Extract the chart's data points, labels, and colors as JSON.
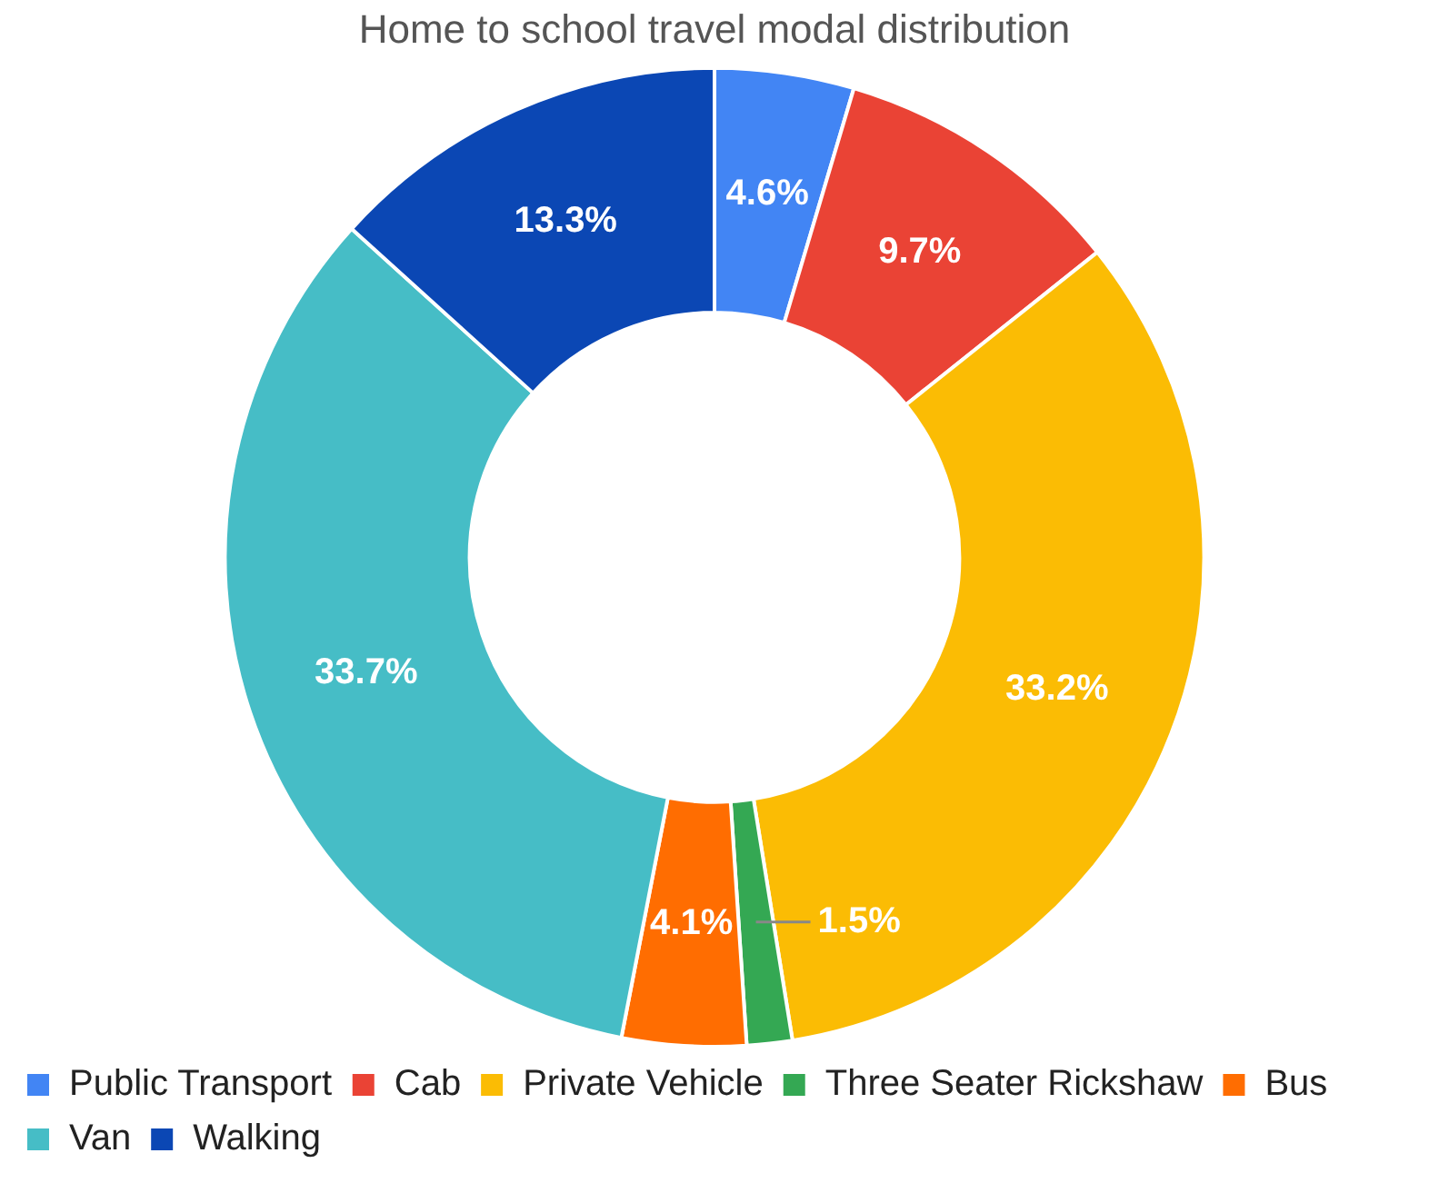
{
  "chart_data": {
    "type": "donut",
    "title": "Home to school travel modal distribution",
    "categories": [
      "Public Transport",
      "Cab",
      "Private Vehicle",
      "Three Seater Rickshaw",
      "Bus",
      "Van",
      "Walking"
    ],
    "values": [
      4.6,
      9.7,
      33.2,
      1.5,
      4.1,
      33.7,
      13.3
    ],
    "value_labels": [
      "4.6%",
      "9.7%",
      "33.2%",
      "1.5%",
      "4.1%",
      "33.7%",
      "13.3%"
    ],
    "colors": [
      "#4285f4",
      "#ea4335",
      "#fbbc04",
      "#34a853",
      "#ff6d01",
      "#46bdc6",
      "#0b47b4"
    ],
    "legend": "bottom"
  }
}
